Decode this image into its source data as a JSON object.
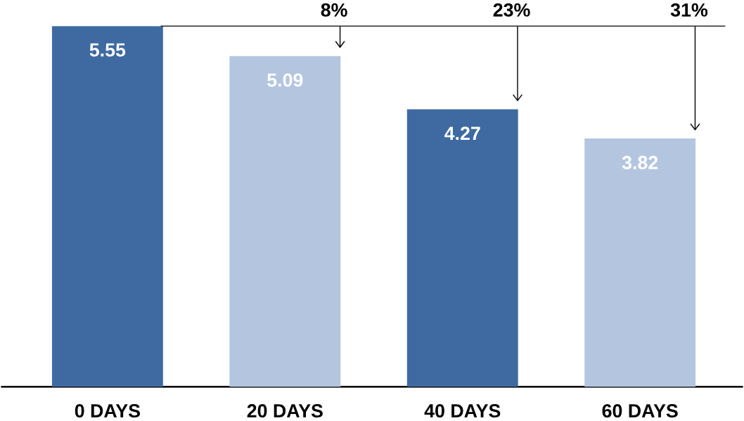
{
  "chart_data": {
    "type": "bar",
    "categories": [
      "0 DAYS",
      "20 DAYS",
      "40 DAYS",
      "60 DAYS"
    ],
    "values": [
      5.55,
      5.09,
      4.27,
      3.82
    ],
    "colors": [
      "#3e6aa1",
      "#b4c6df",
      "#3e6aa1",
      "#b4c6df"
    ],
    "data_labels": true,
    "annotations": [
      "8%",
      "23%",
      "31%"
    ]
  }
}
